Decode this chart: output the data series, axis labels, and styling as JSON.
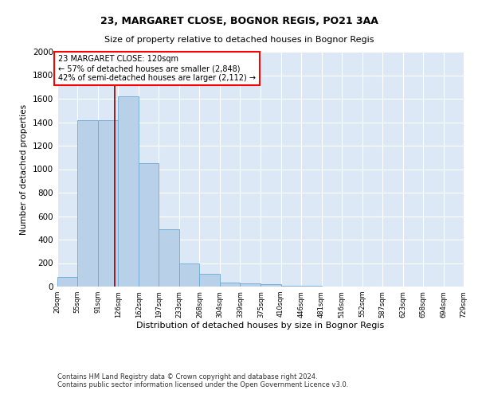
{
  "title1": "23, MARGARET CLOSE, BOGNOR REGIS, PO21 3AA",
  "title2": "Size of property relative to detached houses in Bognor Regis",
  "xlabel": "Distribution of detached houses by size in Bognor Regis",
  "ylabel": "Number of detached properties",
  "footnote1": "Contains HM Land Registry data © Crown copyright and database right 2024.",
  "footnote2": "Contains public sector information licensed under the Open Government Licence v3.0.",
  "bin_edges": [
    20,
    55,
    91,
    126,
    162,
    197,
    233,
    268,
    304,
    339,
    375,
    410,
    446,
    481,
    516,
    552,
    587,
    623,
    658,
    694,
    729
  ],
  "bar_heights": [
    80,
    1420,
    1420,
    1620,
    1050,
    490,
    200,
    110,
    35,
    25,
    20,
    5,
    5,
    3,
    2,
    2,
    1,
    1,
    1,
    0
  ],
  "bar_color": "#b8d0e8",
  "bar_edge_color": "#6aaad4",
  "property_size": 120,
  "vline_color": "#8b0000",
  "annotation_text": "23 MARGARET CLOSE: 120sqm\n← 57% of detached houses are smaller (2,848)\n42% of semi-detached houses are larger (2,112) →",
  "annotation_box_color": "white",
  "annotation_box_edge": "red",
  "ylim": [
    0,
    2000
  ],
  "yticks": [
    0,
    200,
    400,
    600,
    800,
    1000,
    1200,
    1400,
    1600,
    1800,
    2000
  ],
  "background_color": "#dce8f5",
  "grid_color": "white",
  "title1_fontsize": 9,
  "title2_fontsize": 8,
  "xlabel_fontsize": 8,
  "ylabel_fontsize": 7.5,
  "xtick_fontsize": 6,
  "ytick_fontsize": 7.5,
  "footnote_fontsize": 6,
  "annot_fontsize": 7
}
